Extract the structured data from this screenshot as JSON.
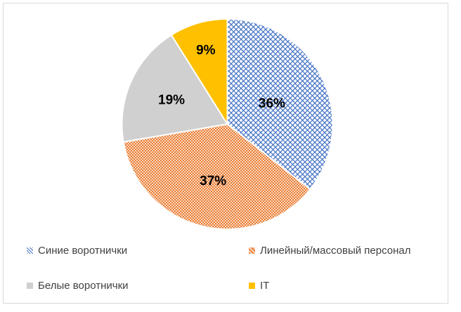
{
  "chart_data": {
    "type": "pie",
    "slices": [
      {
        "label": "Синие воротнички",
        "value": 36,
        "display": "36%",
        "color": "#4472c4",
        "pattern": "diagonal-cross"
      },
      {
        "label": "Линейный/массовый персонал",
        "value": 37,
        "display": "37%",
        "color": "#ed7d31",
        "pattern": "dotted-grid"
      },
      {
        "label": "Белые воротнички",
        "value": 19,
        "display": "19%",
        "color": "#d0d0d0",
        "pattern": "solid"
      },
      {
        "label": "IT",
        "value": 9,
        "display": "9%",
        "color": "#ffc000",
        "pattern": "solid"
      }
    ],
    "legend_position": "bottom",
    "title": ""
  }
}
